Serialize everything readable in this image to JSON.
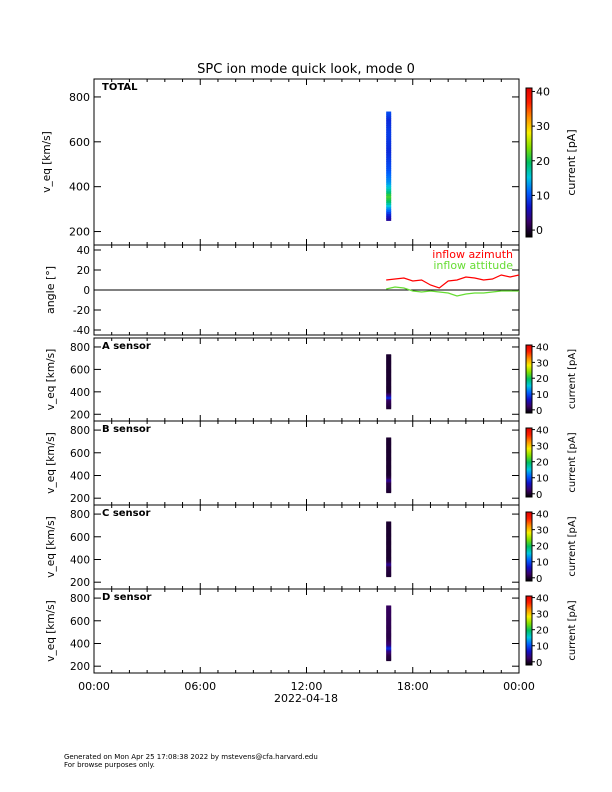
{
  "title": "SPC ion mode quick look, mode 0",
  "x_axis": {
    "tick_labels": [
      "00:00",
      "06:00",
      "12:00",
      "18:00",
      "00:00"
    ],
    "date_label": "2022-04-18"
  },
  "footer": {
    "line1": "Generated on Mon Apr 25 17:08:38 2022 by mstevens@cfa.harvard.edu",
    "line2": "For browse purposes only."
  },
  "colors": {
    "azimuth": "#ff0000",
    "attitude": "#66dd33",
    "colorbar": [
      "#000000",
      "#3a0066",
      "#1010c8",
      "#0060ff",
      "#00c8e0",
      "#00c060",
      "#80e000",
      "#f8f000",
      "#ff9000",
      "#ff2000",
      "#e00000"
    ]
  },
  "chart_data": [
    {
      "type": "heatmap",
      "panel_label": "TOTAL",
      "ylabel": "v_eq [km/s]",
      "ylim": [
        140,
        880
      ],
      "yticks": [
        200,
        400,
        600,
        800
      ],
      "x_start_hours": 16.5,
      "x_end_hours": 16.6,
      "v_range": [
        250,
        735
      ],
      "colorbar": {
        "label": "current [pA]",
        "range": [
          -2,
          41
        ],
        "ticks": [
          0,
          10,
          20,
          30,
          40
        ]
      },
      "column_profile": [
        {
          "v": 250,
          "current": 4
        },
        {
          "v": 280,
          "current": 8
        },
        {
          "v": 310,
          "current": 14
        },
        {
          "v": 340,
          "current": 20
        },
        {
          "v": 360,
          "current": 22
        },
        {
          "v": 380,
          "current": 18
        },
        {
          "v": 420,
          "current": 13
        },
        {
          "v": 480,
          "current": 10
        },
        {
          "v": 560,
          "current": 8
        },
        {
          "v": 640,
          "current": 9
        },
        {
          "v": 700,
          "current": 8
        },
        {
          "v": 735,
          "current": 10
        }
      ]
    },
    {
      "type": "line",
      "ylabel": "angle [°]",
      "ylim": [
        -45,
        45
      ],
      "yticks": [
        -40,
        -20,
        0,
        20,
        40
      ],
      "series": [
        {
          "name": "inflow azimuth",
          "x_hours": [
            16.5,
            17.0,
            17.5,
            18.0,
            18.5,
            19.0,
            19.5,
            20.0,
            20.5,
            21.0,
            21.5,
            22.0,
            22.5,
            23.0,
            23.5,
            24.0
          ],
          "y": [
            10,
            11,
            12,
            9,
            10,
            5,
            2,
            9,
            10,
            13,
            12,
            10,
            11,
            15,
            13,
            15
          ]
        },
        {
          "name": "inflow attitude",
          "x_hours": [
            16.5,
            17.0,
            17.5,
            18.0,
            18.5,
            19.0,
            19.5,
            20.0,
            20.5,
            21.0,
            21.5,
            22.0,
            22.5,
            23.0,
            23.5,
            24.0
          ],
          "y": [
            1,
            3,
            2,
            -1,
            -2,
            -1,
            -2,
            -3,
            -6,
            -4,
            -3,
            -3,
            -2,
            -1,
            -1,
            -1
          ]
        }
      ]
    },
    {
      "type": "heatmap",
      "panel_label": "A sensor",
      "ylabel": "v_eq [km/s]",
      "ylim": [
        140,
        880
      ],
      "yticks": [
        200,
        400,
        600,
        800
      ],
      "x_start_hours": 16.5,
      "x_end_hours": 16.6,
      "v_range": [
        250,
        735
      ],
      "colorbar": {
        "label": "current [pA]",
        "range": [
          -2,
          41
        ],
        "ticks": [
          0,
          10,
          20,
          30,
          40
        ]
      },
      "column_profile": [
        {
          "v": 250,
          "current": 0
        },
        {
          "v": 330,
          "current": 2
        },
        {
          "v": 350,
          "current": 9
        },
        {
          "v": 370,
          "current": 4
        },
        {
          "v": 400,
          "current": 0
        },
        {
          "v": 735,
          "current": 0
        }
      ]
    },
    {
      "type": "heatmap",
      "panel_label": "B sensor",
      "ylabel": "v_eq [km/s]",
      "ylim": [
        140,
        880
      ],
      "yticks": [
        200,
        400,
        600,
        800
      ],
      "x_start_hours": 16.5,
      "x_end_hours": 16.6,
      "v_range": [
        250,
        735
      ],
      "colorbar": {
        "label": "current [pA]",
        "range": [
          -2,
          41
        ],
        "ticks": [
          0,
          10,
          20,
          30,
          40
        ]
      },
      "column_profile": [
        {
          "v": 250,
          "current": 0
        },
        {
          "v": 340,
          "current": 1
        },
        {
          "v": 360,
          "current": 5
        },
        {
          "v": 380,
          "current": 1
        },
        {
          "v": 410,
          "current": 0
        },
        {
          "v": 735,
          "current": 0
        }
      ]
    },
    {
      "type": "heatmap",
      "panel_label": "C sensor",
      "ylabel": "v_eq [km/s]",
      "ylim": [
        140,
        880
      ],
      "yticks": [
        200,
        400,
        600,
        800
      ],
      "x_start_hours": 16.5,
      "x_end_hours": 16.6,
      "v_range": [
        250,
        735
      ],
      "colorbar": {
        "label": "current [pA]",
        "range": [
          -2,
          41
        ],
        "ticks": [
          0,
          10,
          20,
          30,
          40
        ]
      },
      "column_profile": [
        {
          "v": 250,
          "current": 0
        },
        {
          "v": 340,
          "current": 1
        },
        {
          "v": 360,
          "current": 5
        },
        {
          "v": 380,
          "current": 1
        },
        {
          "v": 410,
          "current": 0
        },
        {
          "v": 735,
          "current": 0
        }
      ]
    },
    {
      "type": "heatmap",
      "panel_label": "D sensor",
      "ylabel": "v_eq [km/s]",
      "ylim": [
        140,
        880
      ],
      "yticks": [
        200,
        400,
        600,
        800
      ],
      "x_start_hours": 16.5,
      "x_end_hours": 16.6,
      "v_range": [
        250,
        735
      ],
      "colorbar": {
        "label": "current [pA]",
        "range": [
          -2,
          41
        ],
        "ticks": [
          0,
          10,
          20,
          30,
          40
        ]
      },
      "column_profile": [
        {
          "v": 250,
          "current": 0
        },
        {
          "v": 300,
          "current": 1
        },
        {
          "v": 340,
          "current": 4
        },
        {
          "v": 360,
          "current": 9
        },
        {
          "v": 390,
          "current": 3
        },
        {
          "v": 450,
          "current": 1
        },
        {
          "v": 735,
          "current": 2
        }
      ]
    }
  ]
}
